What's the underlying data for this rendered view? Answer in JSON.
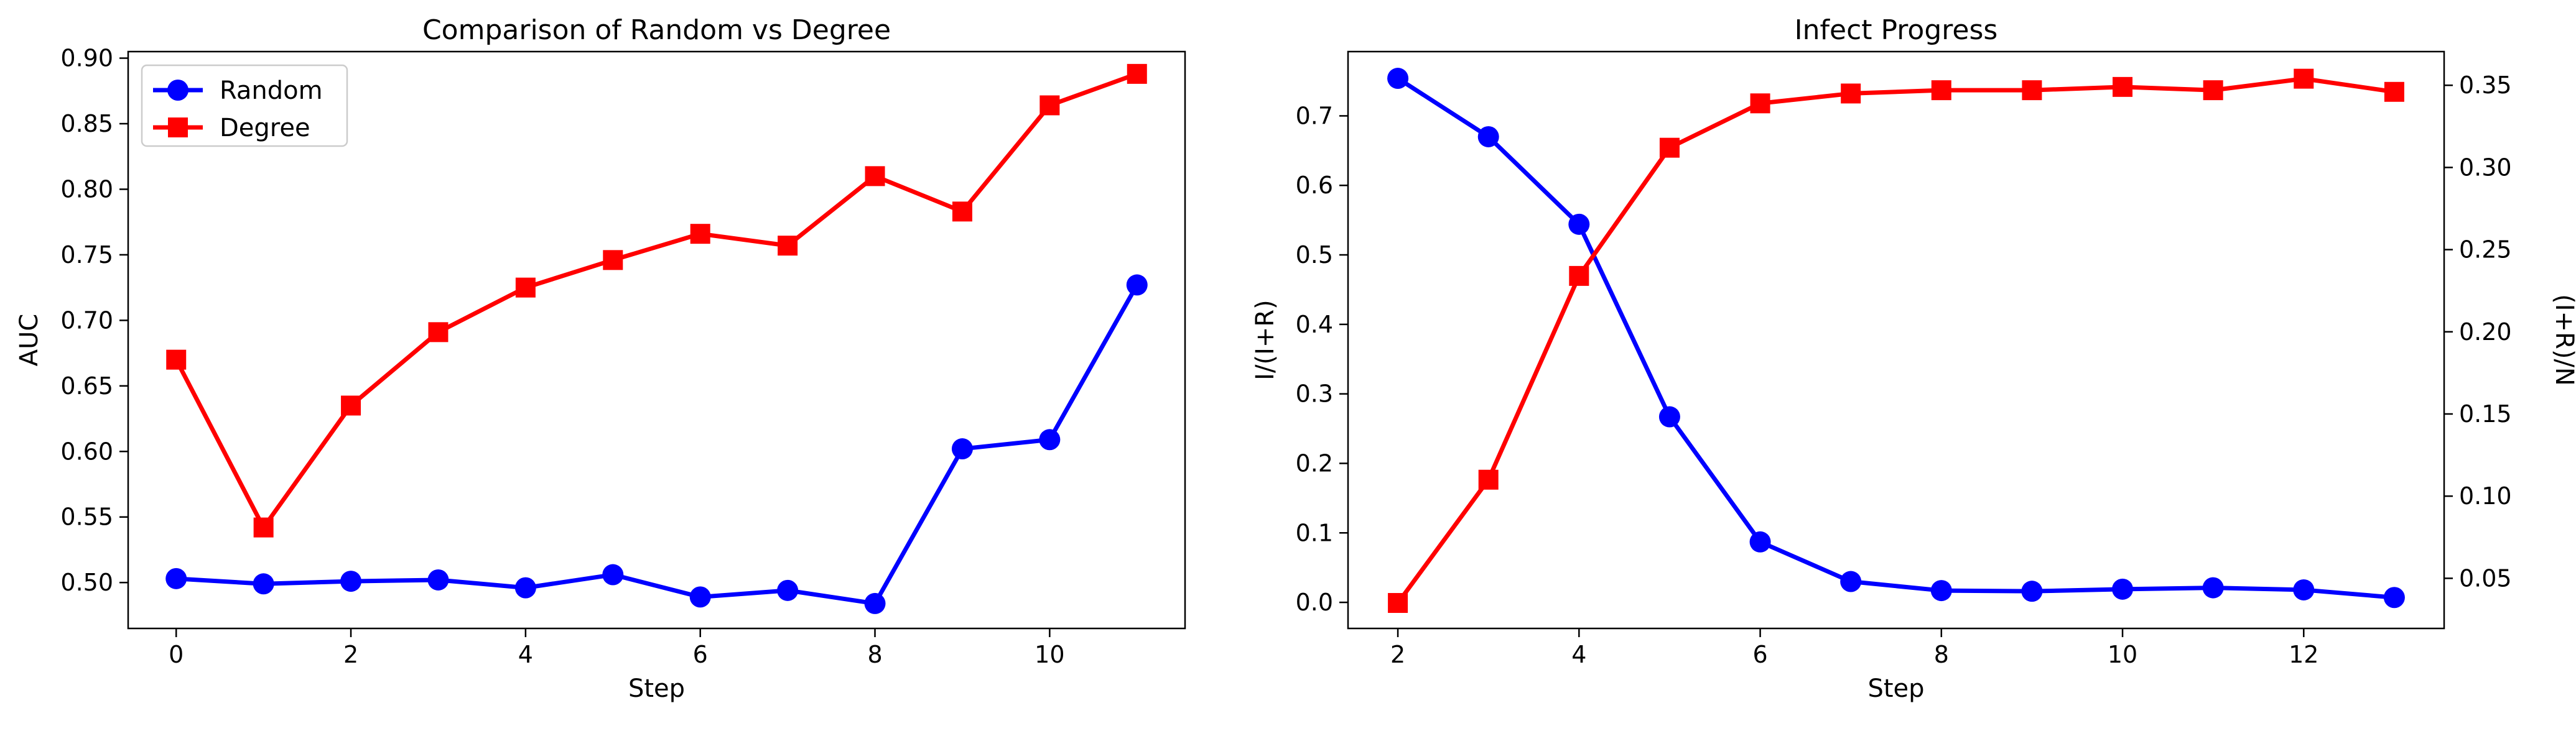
{
  "chart_data": [
    {
      "type": "line",
      "title": "Comparison of Random vs Degree",
      "xlabel": "Step",
      "ylabel": "AUC",
      "xlim": [
        -0.55,
        11.55
      ],
      "ylim": [
        0.465,
        0.905
      ],
      "xticks": [
        0,
        2,
        4,
        6,
        8,
        10
      ],
      "yticks": [
        0.5,
        0.55,
        0.6,
        0.65,
        0.7,
        0.75,
        0.8,
        0.85,
        0.9
      ],
      "x": [
        0,
        1,
        2,
        3,
        4,
        5,
        6,
        7,
        8,
        9,
        10,
        11
      ],
      "legend": "top-left",
      "grid": false,
      "series": [
        {
          "name": "Random",
          "color": "#0000ff",
          "marker": "circle",
          "values": [
            0.503,
            0.499,
            0.501,
            0.502,
            0.496,
            0.506,
            0.489,
            0.494,
            0.484,
            0.602,
            0.609,
            0.727
          ]
        },
        {
          "name": "Degree",
          "color": "#ff0000",
          "marker": "square",
          "values": [
            0.67,
            0.542,
            0.635,
            0.691,
            0.725,
            0.746,
            0.766,
            0.757,
            0.81,
            0.783,
            0.864,
            0.888
          ]
        }
      ]
    },
    {
      "type": "line",
      "title": "Infect Progress",
      "xlabel": "Step",
      "ylabel": "I/(I+R)",
      "y2label": "(I+R)/N",
      "xlim": [
        1.45,
        13.55
      ],
      "ylim": [
        -0.0375,
        0.7925
      ],
      "y2lim": [
        0.0195,
        0.3705
      ],
      "xticks": [
        2,
        4,
        6,
        8,
        10,
        12
      ],
      "yticks": [
        0.0,
        0.1,
        0.2,
        0.3,
        0.4,
        0.5,
        0.6,
        0.7
      ],
      "y2ticks": [
        0.05,
        0.1,
        0.15,
        0.2,
        0.25,
        0.3,
        0.35
      ],
      "x": [
        2,
        3,
        4,
        5,
        6,
        7,
        8,
        9,
        10,
        11,
        12,
        13
      ],
      "grid": false,
      "series": [
        {
          "axis": "left",
          "color": "#0000ff",
          "marker": "circle",
          "values": [
            0.754,
            0.67,
            0.544,
            0.267,
            0.087,
            0.03,
            0.017,
            0.016,
            0.019,
            0.021,
            0.018,
            0.007
          ]
        },
        {
          "axis": "right",
          "color": "#ff0000",
          "marker": "square",
          "values": [
            0.035,
            0.11,
            0.234,
            0.312,
            0.339,
            0.345,
            0.347,
            0.347,
            0.349,
            0.347,
            0.354,
            0.346
          ]
        }
      ]
    }
  ]
}
